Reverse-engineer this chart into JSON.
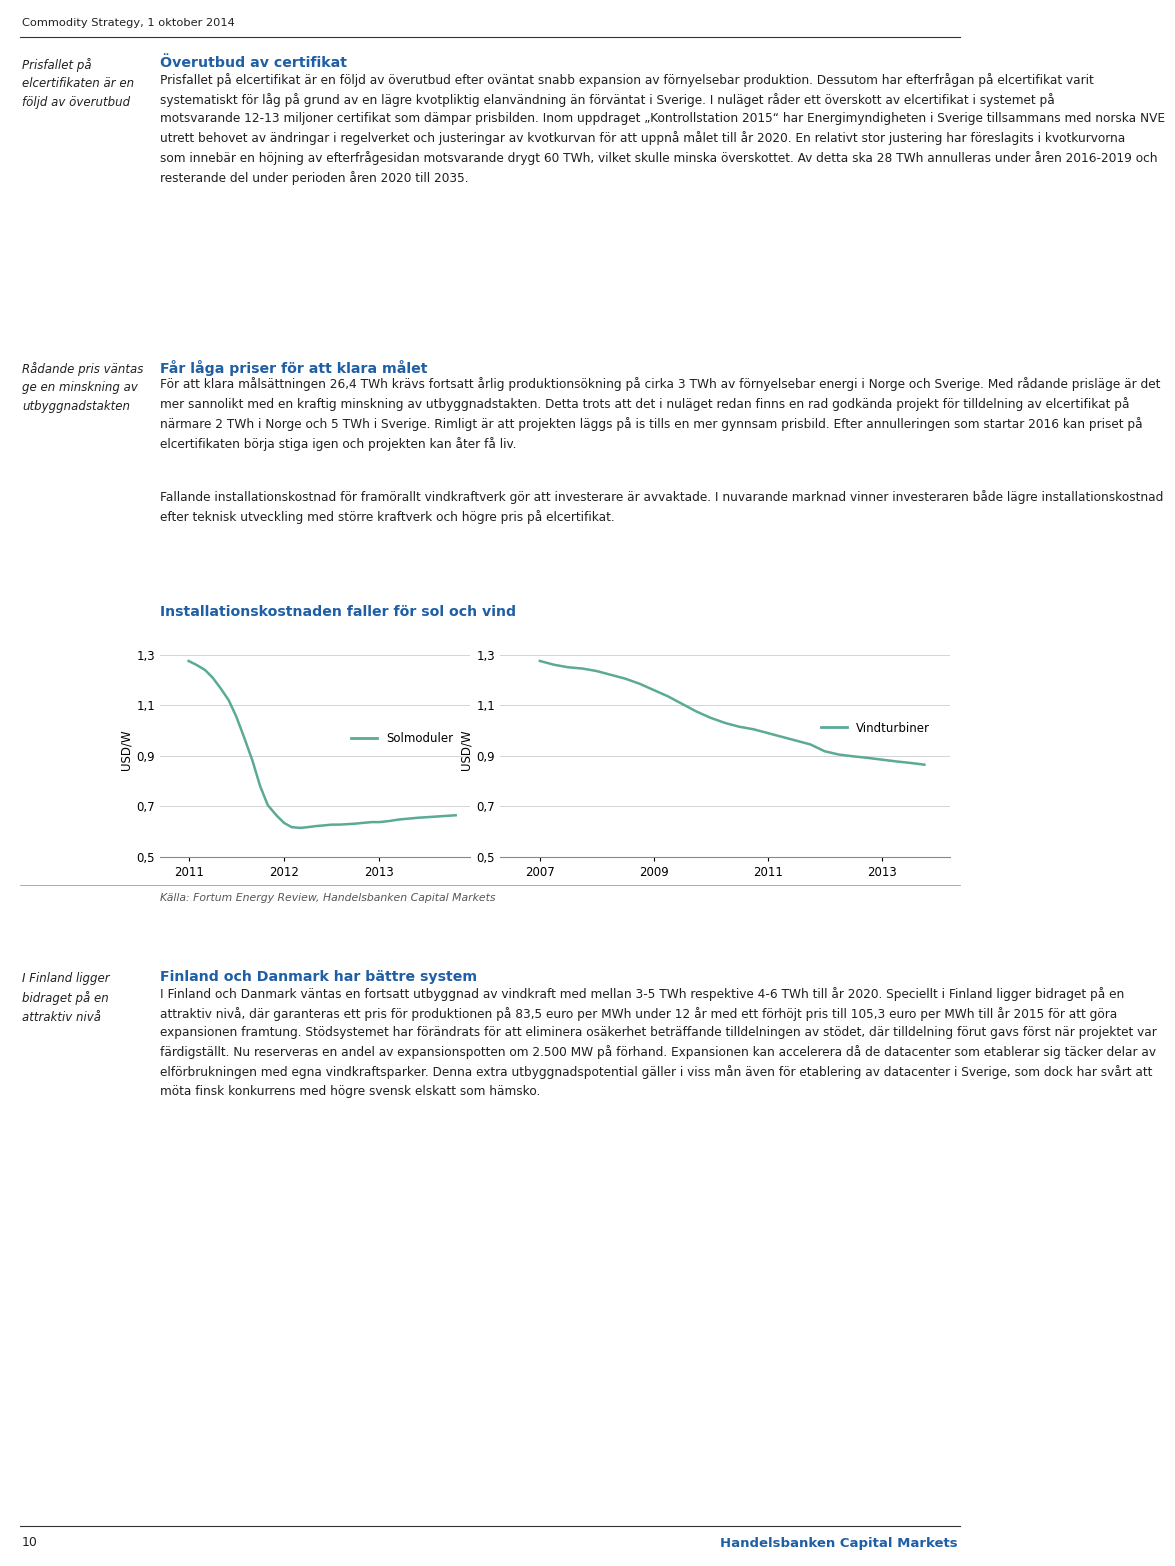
{
  "header_text": "Commodity Strategy, 1 oktober 2014",
  "page_number": "10",
  "handelsbanken_text": "Handelsbanken Capital Markets",
  "section1_title": "Överutbud av certifikat",
  "section2_title": "Får låga priser för att klara målet",
  "chart_title": "Installationskostnaden faller för sol och vind",
  "chart_ylabel": "USD/W",
  "chart1_legend": "Solmoduler",
  "chart2_legend": "Vindturbiner",
  "source_text": "Källa: Fortum Energy Review, Handelsbanken Capital Markets",
  "section3_title": "Finland och Danmark har bättre system",
  "line_color": "#5aaa96",
  "title_color": "#1f5fa6",
  "text_color": "#231f20",
  "sidebar1": "Prisfallet på\nelcertifikaten är en\nföljd av överutbud",
  "sidebar2": "Rådande pris väntas\nge en minskning av\nutbyggnadstakten",
  "sidebar3": "I Finland ligger\nbidraget på en\nattraktiv nivå",
  "body1_lines": [
    "Prisfallet på elcertifikat är en följd av överutbud efter oväntat snabb expansion av förnyelsebar produktion. Dessutom har efterfrågan på elcertifikat varit",
    "systematiskt för låg på grund av en lägre kvotpliktig elanvändning än förväntat i Sverige. I nuläget råder ett överskott av elcertifikat i systemet på",
    "motsvarande 12-13 miljoner certifikat som dämpar prisbilden. Inom uppdraget „Kontrollstation 2015“ har Energimyndigheten i Sverige tillsammans med norska NVE",
    "utrett behovet av ändringar i regelverket och justeringar av kvotkurvan för att uppnå målet till år 2020. En relativt stor justering har föreslagits i kvotkurvorna",
    "som innebär en höjning av efterfrågesidan motsvarande drygt 60 TWh, vilket skulle minska överskottet. Av detta ska 28 TWh annulleras under åren 2016-2019 och",
    "resterande del under perioden åren 2020 till 2035."
  ],
  "body2a_lines": [
    "För att klara målsättningen 26,4 TWh krävs fortsatt årlig produktionsökning på cirka 3 TWh av förnyelsebar energi i Norge och Sverige. Med rådande prisläge är det",
    "mer sannolikt med en kraftig minskning av utbyggnadstakten. Detta trots att det i nuläget redan finns en rad godkända projekt för tilldelning av elcertifikat på",
    "närmare 2 TWh i Norge och 5 TWh i Sverige. Rimligt är att projekten läggs på is tills en mer gynnsam prisbild. Efter annulleringen som startar 2016 kan priset på",
    "elcertifikaten börja stiga igen och projekten kan åter få liv."
  ],
  "body2b_lines": [
    "Fallande installationskostnad för framörallt vindkraftverk gör att investerare är avvaktade. I nuvarande marknad vinner investeraren både lägre installationskostnad",
    "efter teknisk utveckling med större kraftverk och högre pris på elcertifikat."
  ],
  "body3_lines": [
    "I Finland och Danmark väntas en fortsatt utbyggnad av vindkraft med mellan 3-5 TWh respektive 4-6 TWh till år 2020. Speciellt i Finland ligger bidraget på en",
    "attraktiv nivå, där garanteras ett pris för produktionen på 83,5 euro per MWh under 12 år med ett förhöjt pris till 105,3 euro per MWh till år 2015 för att göra",
    "expansionen framtung. Stödsystemet har förändrats för att eliminera osäkerhet beträffande tilldelningen av stödet, där tilldelning förut gavs först när projektet var",
    "färdigställt. Nu reserveras en andel av expansionspotten om 2.500 MW på förhand. Expansionen kan accelerera då de datacenter som etablerar sig täcker delar av",
    "elförbrukningen med egna vindkraftsparker. Denna extra utbyggnadspotential gäller i viss mån även för etablering av datacenter i Sverige, som dock har svårt att",
    "möta finsk konkurrens med högre svensk elskatt som hämsko."
  ],
  "sol_x": [
    2011.0,
    2011.08,
    2011.17,
    2011.25,
    2011.33,
    2011.42,
    2011.5,
    2011.58,
    2011.67,
    2011.75,
    2011.83,
    2011.92,
    2012.0,
    2012.08,
    2012.17,
    2012.25,
    2012.33,
    2012.42,
    2012.5,
    2012.58,
    2012.67,
    2012.75,
    2012.83,
    2012.92,
    2013.0,
    2013.1,
    2013.2,
    2013.4,
    2013.6,
    2013.8
  ],
  "sol_y": [
    1.275,
    1.26,
    1.24,
    1.21,
    1.17,
    1.12,
    1.055,
    0.975,
    0.88,
    0.78,
    0.705,
    0.665,
    0.635,
    0.618,
    0.615,
    0.618,
    0.622,
    0.625,
    0.628,
    0.628,
    0.63,
    0.632,
    0.635,
    0.638,
    0.638,
    0.642,
    0.648,
    0.655,
    0.66,
    0.665
  ],
  "vind_x": [
    2007.0,
    2007.25,
    2007.5,
    2007.75,
    2008.0,
    2008.25,
    2008.5,
    2008.75,
    2009.0,
    2009.25,
    2009.5,
    2009.75,
    2010.0,
    2010.25,
    2010.5,
    2010.75,
    2011.0,
    2011.25,
    2011.5,
    2011.75,
    2012.0,
    2012.25,
    2012.5,
    2012.75,
    2013.0,
    2013.25,
    2013.5,
    2013.75
  ],
  "vind_y": [
    1.275,
    1.26,
    1.25,
    1.245,
    1.235,
    1.22,
    1.205,
    1.185,
    1.16,
    1.135,
    1.105,
    1.075,
    1.05,
    1.03,
    1.015,
    1.005,
    0.99,
    0.975,
    0.96,
    0.945,
    0.918,
    0.905,
    0.898,
    0.892,
    0.885,
    0.878,
    0.872,
    0.865
  ]
}
